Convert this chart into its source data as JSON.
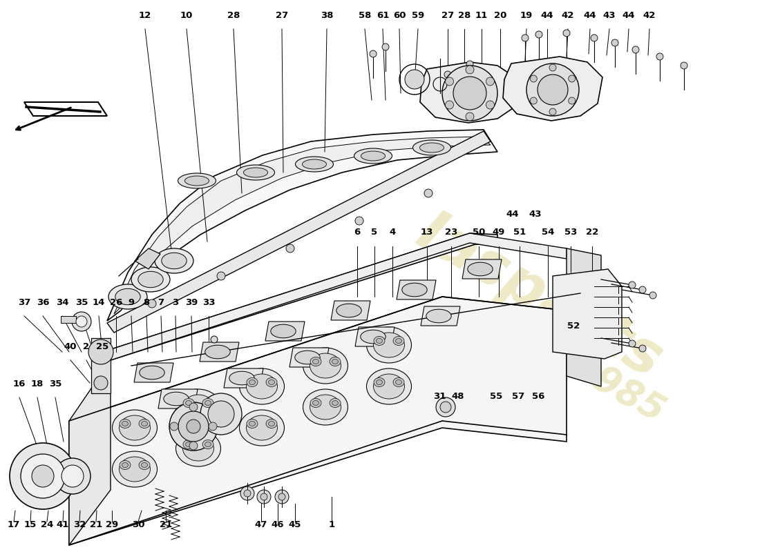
{
  "background_color": "#ffffff",
  "line_color": "#000000",
  "fill_light": "#f5f5f5",
  "fill_mid": "#ebebeb",
  "fill_dark": "#d8d8d8",
  "watermark_color": "#c8b840",
  "watermark_alpha": 0.3,
  "label_fontsize": 9.5,
  "label_fontweight": "bold",
  "top_labels": [
    [
      "12",
      210,
      22
    ],
    [
      "10",
      270,
      22
    ],
    [
      "28",
      338,
      22
    ],
    [
      "27",
      408,
      22
    ],
    [
      "38",
      473,
      22
    ],
    [
      "58",
      528,
      22
    ],
    [
      "61",
      554,
      22
    ],
    [
      "60",
      578,
      22
    ],
    [
      "59",
      605,
      22
    ],
    [
      "27",
      648,
      22
    ],
    [
      "28",
      672,
      22
    ],
    [
      "11",
      697,
      22
    ],
    [
      "20",
      724,
      22
    ],
    [
      "19",
      762,
      22
    ],
    [
      "44",
      792,
      22
    ],
    [
      "42",
      822,
      22
    ],
    [
      "44",
      854,
      22
    ],
    [
      "43",
      882,
      22
    ],
    [
      "44",
      910,
      22
    ],
    [
      "42",
      940,
      22
    ]
  ],
  "mid_labels": [
    [
      "6",
      517,
      337
    ],
    [
      "5",
      542,
      337
    ],
    [
      "4",
      568,
      337
    ],
    [
      "13",
      618,
      337
    ],
    [
      "23",
      653,
      337
    ],
    [
      "50",
      693,
      337
    ],
    [
      "49",
      722,
      337
    ],
    [
      "51",
      752,
      337
    ],
    [
      "54",
      793,
      337
    ],
    [
      "53",
      826,
      337
    ],
    [
      "22",
      857,
      337
    ]
  ],
  "left_labels": [
    [
      "37",
      35,
      438
    ],
    [
      "36",
      62,
      438
    ],
    [
      "34",
      90,
      438
    ],
    [
      "35",
      118,
      438
    ],
    [
      "14",
      143,
      438
    ],
    [
      "26",
      168,
      438
    ],
    [
      "9",
      190,
      438
    ],
    [
      "8",
      212,
      438
    ],
    [
      "7",
      233,
      438
    ],
    [
      "3",
      254,
      438
    ],
    [
      "39",
      277,
      438
    ],
    [
      "33",
      302,
      438
    ],
    [
      "40",
      102,
      502
    ],
    [
      "2",
      125,
      502
    ],
    [
      "25",
      148,
      502
    ],
    [
      "16",
      28,
      556
    ],
    [
      "18",
      54,
      556
    ],
    [
      "35",
      80,
      556
    ]
  ],
  "right_lower_labels": [
    [
      "31",
      636,
      575
    ],
    [
      "48",
      663,
      575
    ],
    [
      "55",
      718,
      575
    ],
    [
      "57",
      750,
      575
    ],
    [
      "56",
      779,
      575
    ]
  ],
  "misc_labels": [
    [
      "52",
      830,
      472
    ],
    [
      "44",
      742,
      310
    ],
    [
      "43",
      775,
      310
    ]
  ],
  "bottom_labels": [
    [
      "17",
      20,
      760
    ],
    [
      "15",
      44,
      760
    ],
    [
      "24",
      68,
      760
    ],
    [
      "41",
      91,
      760
    ],
    [
      "32",
      115,
      760
    ],
    [
      "21",
      139,
      760
    ],
    [
      "29",
      162,
      760
    ],
    [
      "30",
      200,
      760
    ],
    [
      "21",
      240,
      760
    ],
    [
      "47",
      378,
      760
    ],
    [
      "46",
      402,
      760
    ],
    [
      "45",
      427,
      760
    ],
    [
      "1",
      480,
      760
    ]
  ]
}
